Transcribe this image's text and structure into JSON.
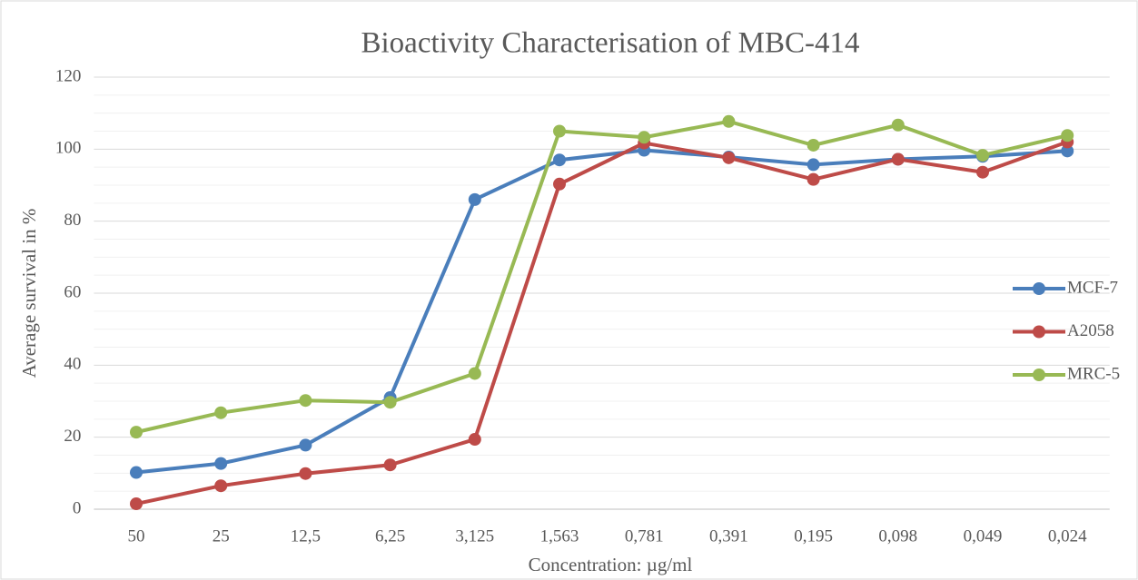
{
  "chart_data": {
    "type": "line",
    "title": "Bioactivity Characterisation of MBC-414",
    "x_label": "Concentration: µg/ml",
    "y_label": "Average survival in %",
    "categories": [
      "50",
      "25",
      "12,5",
      "6,25",
      "3,125",
      "1,563",
      "0,781",
      "0,391",
      "0,195",
      "0,098",
      "0,049",
      "0,024"
    ],
    "series": [
      {
        "name": "MCF-7",
        "color": "#4a7ebb",
        "values": [
          10.2,
          12.7,
          17.8,
          31,
          86,
          97,
          99.7,
          97.8,
          95.7,
          97.2,
          98,
          99.5
        ]
      },
      {
        "name": "A2058",
        "color": "#be4b48",
        "values": [
          1.5,
          6.5,
          9.9,
          12.3,
          19.4,
          90.3,
          101.7,
          97.6,
          91.6,
          97.2,
          93.6,
          102
        ]
      },
      {
        "name": "MRC-5",
        "color": "#98b954",
        "values": [
          21.4,
          26.8,
          30.2,
          29.7,
          37.7,
          105,
          103.3,
          107.7,
          101.1,
          106.7,
          98.3,
          103.8
        ]
      }
    ],
    "ylim": [
      0,
      120
    ],
    "yticks": [
      0,
      20,
      40,
      60,
      80,
      100,
      120
    ],
    "grid": true,
    "legend": "right"
  }
}
